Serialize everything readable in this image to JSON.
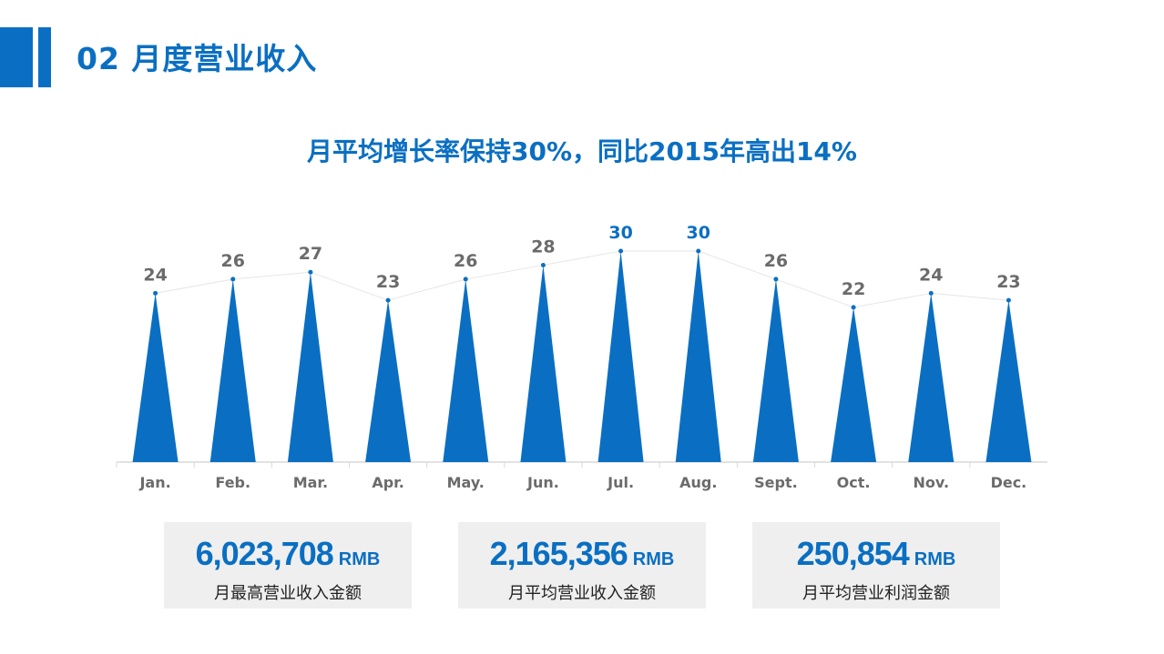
{
  "header": {
    "title": "02 月度营业收入"
  },
  "chart_data": {
    "type": "bar",
    "title": "月平均增长率保持30%，同比2015年高出14%",
    "categories": [
      "Jan.",
      "Feb.",
      "Mar.",
      "Apr.",
      "May.",
      "Jun.",
      "Jul.",
      "Aug.",
      "Sept.",
      "Oct.",
      "Nov.",
      "Dec."
    ],
    "values": [
      24,
      26,
      27,
      23,
      26,
      28,
      30,
      30,
      26,
      22,
      24,
      23
    ],
    "highlight_indices": [
      6,
      7
    ],
    "xlabel": "",
    "ylabel": "",
    "ylim": [
      0,
      30
    ],
    "grid": false,
    "legend": "none",
    "bar_shape": "triangle",
    "colors": {
      "bar": "#0a6fc2",
      "label": "#6b6b6b",
      "label_highlight": "#0a6fc2",
      "axis": "#d8d8d8"
    }
  },
  "stats": [
    {
      "value": "6,023,708",
      "unit": "RMB",
      "label": "月最高营业收入金额"
    },
    {
      "value": "2,165,356",
      "unit": "RMB",
      "label": "月平均营业收入金额"
    },
    {
      "value": "250,854",
      "unit": "RMB",
      "label": "月平均营业利润金额"
    }
  ]
}
